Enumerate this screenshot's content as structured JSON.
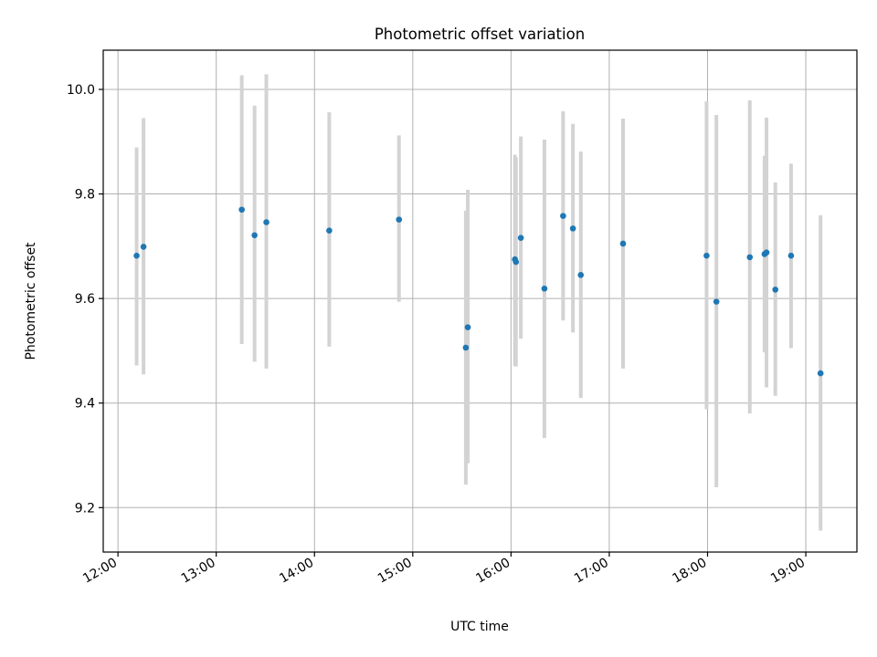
{
  "chart_data": {
    "type": "scatter",
    "title": "Photometric offset variation",
    "xlabel": "UTC time",
    "ylabel": "Photometric offset",
    "x_unit": "hours (UTC)",
    "xlim": [
      11.85,
      19.52
    ],
    "ylim": [
      9.115,
      10.075
    ],
    "x_ticks": [
      {
        "value": 12,
        "label": "12:00"
      },
      {
        "value": 13,
        "label": "13:00"
      },
      {
        "value": 14,
        "label": "14:00"
      },
      {
        "value": 15,
        "label": "15:00"
      },
      {
        "value": 16,
        "label": "16:00"
      },
      {
        "value": 17,
        "label": "17:00"
      },
      {
        "value": 18,
        "label": "18:00"
      },
      {
        "value": 19,
        "label": "19:00"
      }
    ],
    "y_ticks": [
      {
        "value": 9.2,
        "label": "9.2"
      },
      {
        "value": 9.4,
        "label": "9.4"
      },
      {
        "value": 9.6,
        "label": "9.6"
      },
      {
        "value": 9.8,
        "label": "9.8"
      },
      {
        "value": 10.0,
        "label": "10.0"
      }
    ],
    "grid": true,
    "point_color": "#1f77b4",
    "errorbar_color": "#d3d3d3",
    "series": [
      {
        "points": [
          {
            "time": "12:11",
            "x": 12.19,
            "y": 9.682,
            "ylo": 9.472,
            "yhi": 9.889
          },
          {
            "time": "12:16",
            "x": 12.26,
            "y": 9.699,
            "ylo": 9.455,
            "yhi": 9.945
          },
          {
            "time": "13:15",
            "x": 13.26,
            "y": 9.77,
            "ylo": 9.513,
            "yhi": 10.027
          },
          {
            "time": "13:23",
            "x": 13.39,
            "y": 9.721,
            "ylo": 9.479,
            "yhi": 9.969
          },
          {
            "time": "13:31",
            "x": 13.51,
            "y": 9.746,
            "ylo": 9.466,
            "yhi": 10.029
          },
          {
            "time": "14:09",
            "x": 14.15,
            "y": 9.73,
            "ylo": 9.508,
            "yhi": 9.956
          },
          {
            "time": "14:52",
            "x": 14.86,
            "y": 9.751,
            "ylo": 9.594,
            "yhi": 9.912
          },
          {
            "time": "15:33",
            "x": 15.54,
            "y": 9.506,
            "ylo": 9.244,
            "yhi": 9.768
          },
          {
            "time": "15:34",
            "x": 15.56,
            "y": 9.545,
            "ylo": 9.285,
            "yhi": 9.808
          },
          {
            "time": "16:02",
            "x": 16.04,
            "y": 9.675,
            "ylo": 9.471,
            "yhi": 9.875
          },
          {
            "time": "16:03",
            "x": 16.05,
            "y": 9.67,
            "ylo": 9.47,
            "yhi": 9.87
          },
          {
            "time": "16:06",
            "x": 16.1,
            "y": 9.716,
            "ylo": 9.523,
            "yhi": 9.91
          },
          {
            "time": "16:20",
            "x": 16.34,
            "y": 9.619,
            "ylo": 9.333,
            "yhi": 9.904
          },
          {
            "time": "16:32",
            "x": 16.53,
            "y": 9.758,
            "ylo": 9.558,
            "yhi": 9.958
          },
          {
            "time": "16:38",
            "x": 16.63,
            "y": 9.734,
            "ylo": 9.535,
            "yhi": 9.934
          },
          {
            "time": "16:42",
            "x": 16.71,
            "y": 9.645,
            "ylo": 9.41,
            "yhi": 9.881
          },
          {
            "time": "17:08",
            "x": 17.14,
            "y": 9.705,
            "ylo": 9.466,
            "yhi": 9.944
          },
          {
            "time": "17:59",
            "x": 17.99,
            "y": 9.682,
            "ylo": 9.388,
            "yhi": 9.977
          },
          {
            "time": "18:05",
            "x": 18.09,
            "y": 9.594,
            "ylo": 9.239,
            "yhi": 9.951
          },
          {
            "time": "18:26",
            "x": 18.43,
            "y": 9.679,
            "ylo": 9.38,
            "yhi": 9.979
          },
          {
            "time": "18:35",
            "x": 18.58,
            "y": 9.685,
            "ylo": 9.497,
            "yhi": 9.873
          },
          {
            "time": "18:36",
            "x": 18.6,
            "y": 9.688,
            "ylo": 9.43,
            "yhi": 9.946
          },
          {
            "time": "18:41",
            "x": 18.69,
            "y": 9.617,
            "ylo": 9.414,
            "yhi": 9.822
          },
          {
            "time": "18:51",
            "x": 18.85,
            "y": 9.682,
            "ylo": 9.505,
            "yhi": 9.858
          },
          {
            "time": "19:09",
            "x": 19.15,
            "y": 9.457,
            "ylo": 9.156,
            "yhi": 9.759
          }
        ]
      }
    ]
  }
}
